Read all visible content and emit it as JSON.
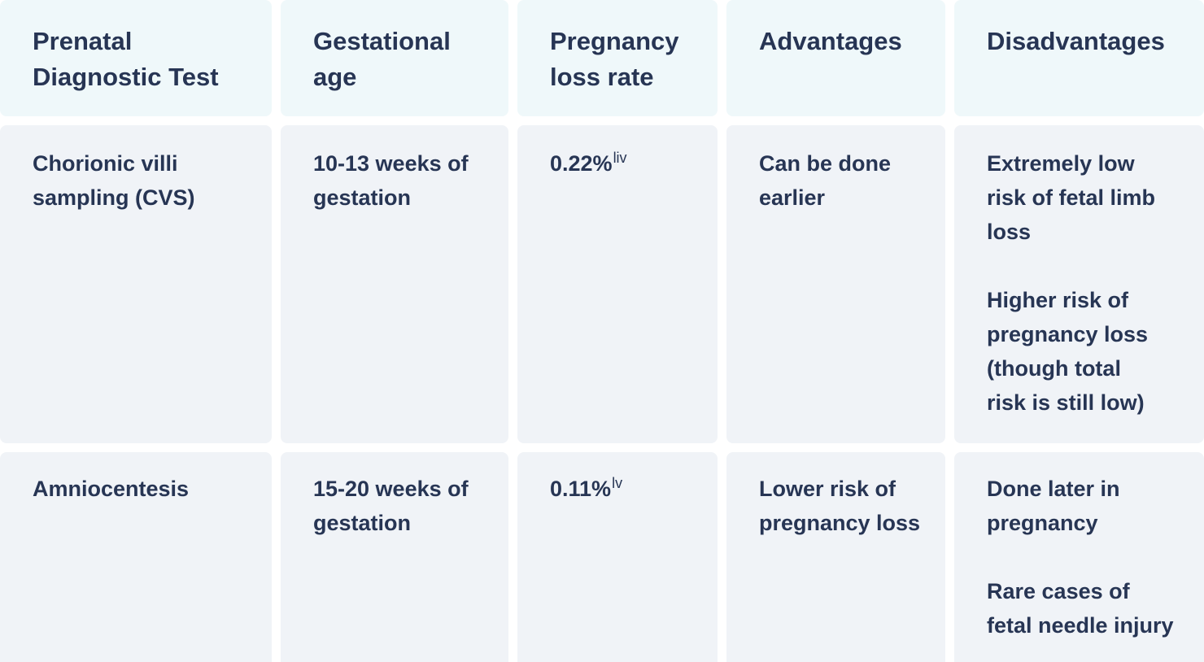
{
  "headers": [
    [
      "Prenatal",
      "Diagnostic Test"
    ],
    [
      "Gestational",
      "age"
    ],
    [
      "Pregnancy",
      "loss rate"
    ],
    [
      "Advantages"
    ],
    [
      "Disadvantages"
    ]
  ],
  "rows": [
    {
      "test": [
        "Chorionic villi",
        "sampling (CVS)"
      ],
      "age": [
        "10-13 weeks of",
        "gestation"
      ],
      "loss_rate": "0.22%",
      "loss_rate_ref": "liv",
      "advantages": [
        "Can be done",
        "earlier"
      ],
      "disadvantages_1": [
        "Extremely low",
        "risk of fetal limb",
        "loss"
      ],
      "disadvantages_2": [
        "Higher risk of",
        "pregnancy loss",
        "(though total",
        "risk is still low)"
      ]
    },
    {
      "test": [
        "Amniocentesis"
      ],
      "age": [
        "15-20 weeks of",
        "gestation"
      ],
      "loss_rate": "0.11%",
      "loss_rate_ref": "lv",
      "advantages": [
        "Lower risk of",
        "pregnancy loss"
      ],
      "disadvantages_1": [
        "Done later in",
        "pregnancy"
      ],
      "disadvantages_2": [
        "Rare cases of",
        "fetal needle injury"
      ]
    }
  ]
}
